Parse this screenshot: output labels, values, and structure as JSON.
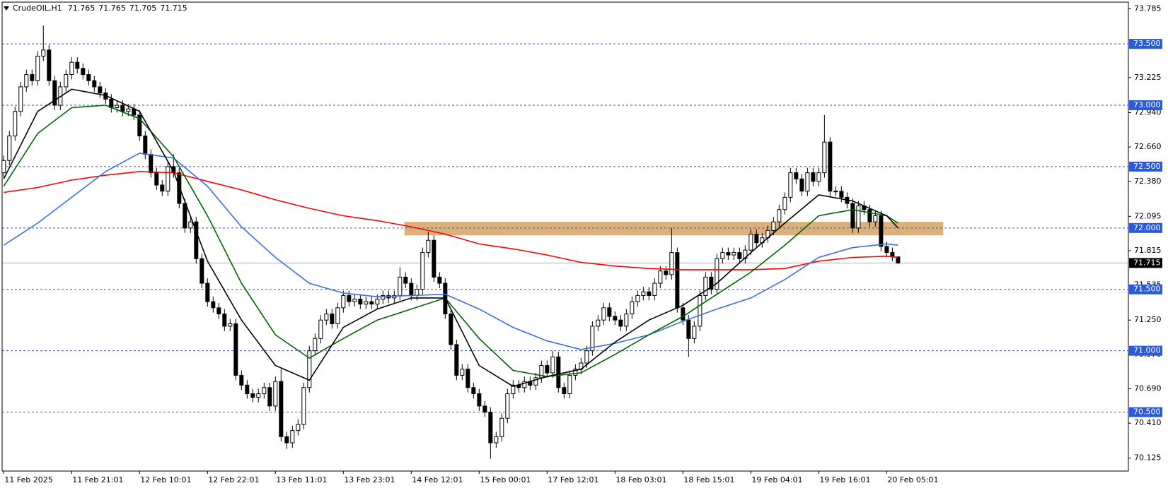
{
  "chart_data": {
    "type": "candlestick",
    "symbol": "CrudeOIL,H1",
    "open": [
      72.45,
      72.55,
      72.75,
      72.95,
      73.15,
      73.25,
      73.2,
      73.4,
      73.45,
      73.2,
      73.0,
      73.15,
      73.25,
      73.35,
      73.3,
      73.25,
      73.2,
      73.15,
      73.1,
      73.05,
      72.98,
      73.0,
      72.95,
      72.97,
      72.92,
      72.75,
      72.6,
      72.45,
      72.35,
      72.3,
      72.5,
      72.45,
      72.2,
      72.0,
      72.05,
      71.75,
      71.55,
      71.4,
      71.35,
      71.3,
      71.2,
      71.22,
      70.8,
      70.72,
      70.65,
      70.62,
      70.65,
      70.7,
      70.55,
      70.75,
      70.3,
      70.25,
      70.35,
      70.4,
      70.7,
      71.0,
      71.1,
      71.25,
      71.3,
      71.22,
      71.35,
      71.45,
      71.4,
      71.42,
      71.38,
      71.4,
      71.38,
      71.42,
      71.45,
      71.43,
      71.45,
      71.6,
      71.55,
      71.45,
      71.5,
      71.8,
      71.9,
      71.6,
      71.55,
      71.3,
      71.05,
      70.8,
      70.85,
      70.7,
      70.65,
      70.55,
      70.5,
      70.25,
      70.3,
      70.45,
      70.65,
      70.72,
      70.7,
      70.75,
      70.72,
      70.78,
      70.88,
      70.82,
      70.95,
      70.7,
      70.65,
      70.8,
      70.85,
      70.9,
      71.0,
      71.2,
      71.25,
      71.35,
      71.28,
      71.25,
      71.2,
      71.3,
      71.4,
      71.45,
      71.48,
      71.45,
      71.55,
      71.65,
      71.62,
      71.8,
      71.35,
      71.25,
      71.1,
      71.2,
      71.45,
      71.6,
      71.5,
      71.75,
      71.8,
      71.78,
      71.8,
      71.75,
      71.82,
      71.95,
      71.88,
      71.92,
      71.98,
      72.05,
      72.15,
      72.25,
      72.45,
      72.4,
      72.3,
      72.45,
      72.38,
      72.45,
      72.7,
      72.3,
      72.3,
      72.25,
      72.2,
      72.0,
      72.18,
      72.15,
      72.05,
      72.1,
      71.85,
      71.8,
      71.765
    ],
    "high": [
      72.59,
      72.79,
      72.99,
      73.19,
      73.29,
      73.29,
      73.44,
      73.65,
      73.49,
      73.24,
      73.19,
      73.29,
      73.39,
      73.39,
      73.34,
      73.29,
      73.24,
      73.19,
      73.14,
      73.09,
      73.04,
      73.04,
      73.01,
      73.01,
      72.96,
      72.79,
      72.64,
      72.49,
      72.39,
      72.54,
      72.6,
      72.49,
      72.24,
      72.09,
      72.09,
      71.79,
      71.59,
      71.44,
      71.39,
      71.34,
      71.26,
      71.26,
      70.84,
      70.76,
      70.69,
      70.69,
      70.74,
      70.74,
      70.79,
      70.85,
      70.34,
      70.39,
      70.44,
      70.74,
      71.04,
      71.14,
      71.29,
      71.34,
      71.34,
      71.39,
      71.49,
      71.49,
      71.46,
      71.46,
      71.44,
      71.44,
      71.46,
      71.49,
      71.49,
      71.49,
      71.68,
      71.64,
      71.59,
      71.54,
      71.84,
      71.97,
      71.94,
      71.64,
      71.59,
      71.34,
      71.09,
      70.89,
      70.89,
      70.74,
      70.69,
      70.59,
      70.54,
      70.34,
      70.49,
      70.69,
      70.76,
      70.76,
      70.79,
      70.79,
      70.82,
      70.92,
      70.92,
      71.0,
      70.99,
      70.74,
      70.84,
      70.89,
      70.94,
      71.04,
      71.24,
      71.29,
      71.39,
      71.39,
      71.32,
      71.29,
      71.34,
      71.44,
      71.49,
      71.52,
      71.52,
      71.59,
      71.69,
      71.69,
      72.0,
      71.84,
      71.39,
      71.29,
      71.24,
      71.49,
      71.64,
      71.64,
      71.79,
      71.84,
      71.84,
      71.84,
      71.84,
      71.86,
      71.99,
      71.99,
      71.96,
      72.02,
      72.09,
      72.19,
      72.29,
      72.49,
      72.49,
      72.44,
      72.49,
      72.49,
      72.49,
      72.92,
      72.74,
      72.34,
      72.34,
      72.29,
      72.24,
      72.22,
      72.22,
      72.19,
      72.14,
      72.14,
      71.89,
      71.84,
      71.765
    ],
    "low": [
      72.41,
      72.51,
      72.71,
      72.91,
      73.11,
      73.16,
      73.16,
      73.36,
      73.16,
      72.96,
      72.96,
      73.11,
      73.21,
      73.26,
      73.21,
      73.16,
      73.11,
      73.06,
      73.01,
      72.94,
      72.94,
      72.91,
      72.91,
      72.88,
      72.71,
      72.56,
      72.41,
      72.31,
      72.26,
      72.26,
      72.41,
      72.16,
      71.96,
      71.96,
      71.71,
      71.51,
      71.36,
      71.31,
      71.26,
      71.16,
      71.16,
      70.76,
      70.68,
      70.61,
      70.58,
      70.58,
      70.61,
      70.51,
      70.51,
      70.26,
      70.2,
      70.21,
      70.31,
      70.36,
      70.66,
      70.96,
      71.06,
      71.21,
      71.18,
      71.18,
      71.31,
      71.36,
      71.36,
      71.34,
      71.34,
      71.34,
      71.34,
      71.38,
      71.39,
      71.39,
      71.41,
      71.51,
      71.41,
      71.41,
      71.46,
      71.76,
      71.56,
      71.51,
      71.26,
      71.01,
      70.76,
      70.76,
      70.66,
      70.61,
      70.51,
      70.46,
      70.12,
      70.21,
      70.26,
      70.41,
      70.61,
      70.66,
      70.66,
      70.68,
      70.68,
      70.74,
      70.78,
      70.78,
      70.66,
      70.61,
      70.61,
      70.76,
      70.81,
      70.86,
      70.96,
      71.16,
      71.21,
      71.24,
      71.21,
      71.16,
      71.16,
      71.26,
      71.36,
      71.41,
      71.41,
      71.41,
      71.51,
      71.58,
      71.58,
      71.31,
      71.21,
      70.95,
      71.06,
      71.16,
      71.41,
      71.46,
      71.46,
      71.71,
      71.74,
      71.74,
      71.71,
      71.71,
      71.78,
      71.84,
      71.84,
      71.88,
      71.94,
      72.01,
      72.11,
      72.21,
      72.36,
      72.26,
      72.26,
      72.34,
      72.34,
      72.41,
      72.26,
      72.26,
      72.21,
      72.16,
      71.96,
      71.96,
      72.11,
      72.01,
      72.01,
      71.81,
      71.76,
      71.73,
      71.705
    ],
    "close": [
      72.55,
      72.75,
      72.95,
      73.15,
      73.25,
      73.2,
      73.4,
      73.45,
      73.2,
      73.0,
      73.15,
      73.25,
      73.35,
      73.3,
      73.25,
      73.2,
      73.15,
      73.1,
      73.05,
      72.98,
      73.0,
      72.95,
      72.97,
      72.92,
      72.75,
      72.6,
      72.45,
      72.35,
      72.3,
      72.5,
      72.45,
      72.2,
      72.0,
      72.05,
      71.75,
      71.55,
      71.4,
      71.35,
      71.3,
      71.2,
      71.22,
      70.8,
      70.72,
      70.65,
      70.62,
      70.65,
      70.7,
      70.55,
      70.75,
      70.3,
      70.25,
      70.35,
      70.4,
      70.7,
      71.0,
      71.1,
      71.25,
      71.3,
      71.22,
      71.35,
      71.45,
      71.4,
      71.42,
      71.38,
      71.4,
      71.38,
      71.42,
      71.45,
      71.43,
      71.45,
      71.6,
      71.55,
      71.45,
      71.5,
      71.8,
      71.9,
      71.6,
      71.55,
      71.3,
      71.05,
      70.8,
      70.85,
      70.7,
      70.65,
      70.55,
      70.5,
      70.25,
      70.3,
      70.45,
      70.65,
      70.72,
      70.7,
      70.75,
      70.72,
      70.78,
      70.88,
      70.82,
      70.95,
      70.7,
      70.65,
      70.8,
      70.85,
      70.9,
      71.0,
      71.2,
      71.25,
      71.35,
      71.28,
      71.25,
      71.2,
      71.3,
      71.4,
      71.45,
      71.48,
      71.45,
      71.55,
      71.65,
      71.62,
      71.8,
      71.35,
      71.25,
      71.1,
      71.2,
      71.45,
      71.6,
      71.5,
      71.75,
      71.8,
      71.78,
      71.8,
      71.75,
      71.82,
      71.95,
      71.88,
      71.92,
      71.98,
      72.05,
      72.15,
      72.25,
      72.45,
      72.4,
      72.3,
      72.45,
      72.38,
      72.45,
      72.7,
      72.3,
      72.3,
      72.25,
      72.2,
      72.0,
      72.18,
      72.15,
      72.05,
      72.1,
      71.85,
      71.8,
      71.765,
      71.715
    ],
    "up_color": "#ffffff",
    "down_color": "#000000",
    "xlim": [
      -0.66,
      198.7
    ],
    "xticks": [
      {
        "value": 0,
        "label": "11 Feb 2025"
      },
      {
        "value": 12,
        "label": "11 Feb 21:01"
      },
      {
        "value": 24,
        "label": "12 Feb 10:01"
      },
      {
        "value": 36,
        "label": "12 Feb 22:01"
      },
      {
        "value": 48,
        "label": "13 Feb 11:01"
      },
      {
        "value": 60,
        "label": "13 Feb 23:01"
      },
      {
        "value": 72,
        "label": "14 Feb 12:01"
      },
      {
        "value": 84,
        "label": "15 Feb 00:01"
      },
      {
        "value": 96,
        "label": "17 Feb 12:01"
      },
      {
        "value": 108,
        "label": "18 Feb 03:01"
      },
      {
        "value": 120,
        "label": "18 Feb 15:01"
      },
      {
        "value": 132,
        "label": "19 Feb 04:01"
      },
      {
        "value": 144,
        "label": "19 Feb 16:01"
      },
      {
        "value": 156,
        "label": "20 Feb 05:01"
      }
    ],
    "ylim": [
      70.02,
      73.84
    ],
    "yticks": [
      73.785,
      73.225,
      {
        "value": 72.94,
        "label": "72.940"
      },
      {
        "value": 72.66,
        "label": "72.660"
      },
      {
        "value": 72.38,
        "label": "72.380"
      },
      72.095,
      71.815,
      71.535,
      {
        "value": 71.25,
        "label": "71.250"
      },
      {
        "value": 70.97,
        "label": "70.970"
      },
      {
        "value": 70.69,
        "label": "70.690"
      },
      {
        "value": 70.41,
        "label": "70.410"
      },
      70.125
    ],
    "levels": [
      {
        "value": 73.5,
        "label": "73.500"
      },
      {
        "value": 73.0,
        "label": "73.000"
      },
      {
        "value": 72.5,
        "label": "72.500"
      },
      {
        "value": 72.0,
        "label": "72.000"
      },
      {
        "value": 71.5,
        "label": "71.500"
      },
      {
        "value": 71.0,
        "label": "71.000"
      },
      {
        "value": 70.5,
        "label": "70.500"
      }
    ],
    "level_color": "#2a5ad8",
    "zone": {
      "xlim": [
        70.8,
        166
      ],
      "ylim": [
        71.94,
        72.05
      ],
      "color": "#dcb07a"
    },
    "ma_x": [
      0,
      6,
      12,
      18,
      24,
      30,
      36,
      42,
      48,
      54,
      60,
      66,
      72,
      78,
      84,
      90,
      96,
      102,
      108,
      114,
      120,
      126,
      132,
      138,
      144,
      150,
      156,
      158
    ],
    "series": [
      {
        "color": "#ff0000",
        "values": [
          72.29,
          72.33,
          72.39,
          72.43,
          72.46,
          72.45,
          72.38,
          72.31,
          72.23,
          72.16,
          72.1,
          72.06,
          72.01,
          71.95,
          71.87,
          71.83,
          71.78,
          71.72,
          71.69,
          71.67,
          71.66,
          71.66,
          71.66,
          71.67,
          71.73,
          71.76,
          71.77,
          71.76
        ]
      },
      {
        "color": "#3a6fe0",
        "values": [
          71.86,
          72.04,
          72.25,
          72.46,
          72.61,
          72.57,
          72.34,
          72.01,
          71.76,
          71.55,
          71.47,
          71.44,
          71.45,
          71.46,
          71.34,
          71.19,
          71.08,
          71.01,
          71.06,
          71.13,
          71.24,
          71.34,
          71.43,
          71.58,
          71.76,
          71.84,
          71.87,
          71.86
        ]
      },
      {
        "color": "#006400",
        "values": [
          72.34,
          72.77,
          72.98,
          73.0,
          72.89,
          72.58,
          72.1,
          71.55,
          71.13,
          70.94,
          71.1,
          71.25,
          71.34,
          71.43,
          71.1,
          70.84,
          70.79,
          70.82,
          70.97,
          71.13,
          71.28,
          71.46,
          71.64,
          71.86,
          72.1,
          72.15,
          72.1,
          72.04
        ]
      },
      {
        "color": "#000000",
        "values": [
          72.4,
          72.95,
          73.13,
          73.08,
          72.95,
          72.46,
          71.73,
          71.25,
          70.88,
          70.76,
          71.19,
          71.34,
          71.43,
          71.43,
          70.88,
          70.71,
          70.79,
          70.85,
          71.07,
          71.25,
          71.37,
          71.55,
          71.8,
          72.04,
          72.27,
          72.22,
          72.1,
          72.0
        ]
      }
    ]
  }
}
